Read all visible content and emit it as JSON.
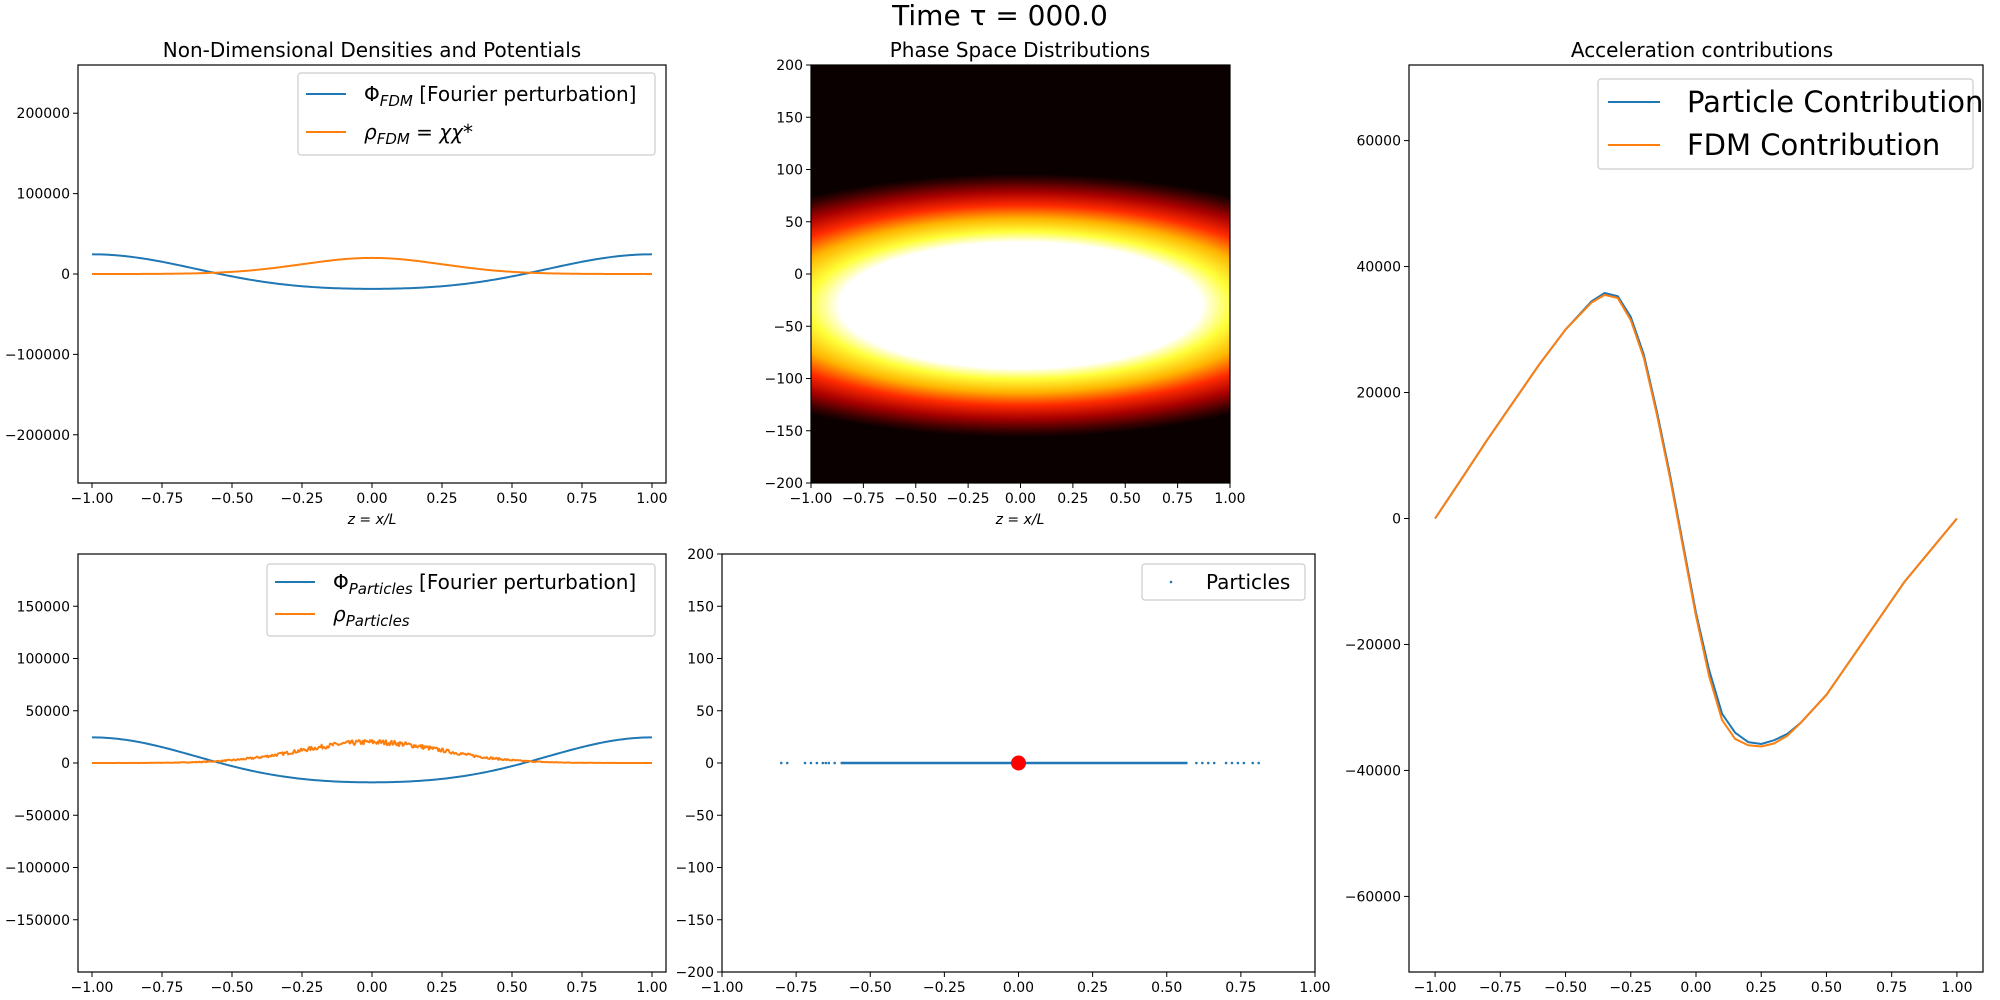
{
  "figure": {
    "suptitle": "Time τ = 000.0"
  },
  "colors": {
    "blue": "#1f77b4",
    "orange": "#ff7f0e",
    "red": "#ff0000"
  },
  "chart_data": [
    {
      "id": "densities_fdm",
      "type": "line",
      "title": "Non-Dimensional Densities and Potentials",
      "xlabel": "z = x/L",
      "xlim": [
        -1.05,
        1.05
      ],
      "ylim": [
        -260000,
        260000
      ],
      "xticks": [
        -1.0,
        -0.75,
        -0.5,
        -0.25,
        0.0,
        0.25,
        0.5,
        0.75,
        1.0
      ],
      "xtick_labels": [
        "−1.00",
        "−0.75",
        "−0.50",
        "−0.25",
        "0.00",
        "0.25",
        "0.50",
        "0.75",
        "1.00"
      ],
      "yticks": [
        200000,
        100000,
        0,
        -100000,
        -200000
      ],
      "ytick_labels": [
        "200000",
        "100000",
        "0",
        "−100000",
        "−200000"
      ],
      "legend_position": "upper right",
      "series": [
        {
          "name": "Φ_FDM [Fourier perturbation]",
          "legend_base": "Φ",
          "legend_sub": "FDM",
          "legend_suffix": " [Fourier perturbation]",
          "color": "#1f77b4",
          "kind": "cosine",
          "params": {
            "a": -21500,
            "b": 3000
          }
        },
        {
          "name": "ρ_FDM = χχ*",
          "legend_base": "ρ",
          "legend_sub": "FDM",
          "legend_suffix": " = χχ*",
          "color": "#ff7f0e",
          "kind": "gaussian",
          "params": {
            "a": 20000,
            "sigma": 0.25,
            "noise": 0
          }
        }
      ]
    },
    {
      "id": "phase_space",
      "type": "heatmap",
      "title": "Phase Space Distributions",
      "xlabel": "z = x/L",
      "xlim": [
        -1.0,
        1.0
      ],
      "ylim": [
        -200,
        200
      ],
      "xticks": [
        -1.0,
        -0.75,
        -0.5,
        -0.25,
        0.0,
        0.25,
        0.5,
        0.75,
        1.0
      ],
      "xtick_labels": [
        "−1.00",
        "−0.75",
        "−0.50",
        "−0.25",
        "0.00",
        "0.25",
        "0.50",
        "0.75",
        "1.00"
      ],
      "yticks": [
        200,
        150,
        100,
        50,
        0,
        -50,
        -100,
        -150,
        -200
      ],
      "ytick_labels": [
        "200",
        "150",
        "100",
        "50",
        "0",
        "−50",
        "−100",
        "−150",
        "−200"
      ],
      "colormap": "hot",
      "center": [
        0.0,
        -30
      ],
      "width_x": 0.9,
      "width_v": 60
    },
    {
      "id": "acceleration",
      "type": "line",
      "title": "Acceleration contributions",
      "xlabel": "",
      "xlim": [
        -1.1,
        1.1
      ],
      "ylim": [
        -72000,
        72000
      ],
      "xticks": [
        -1.0,
        -0.75,
        -0.5,
        -0.25,
        0.0,
        0.25,
        0.5,
        0.75,
        1.0
      ],
      "xtick_labels": [
        "−1.00",
        "−0.75",
        "−0.50",
        "−0.25",
        "0.00",
        "0.25",
        "0.50",
        "0.75",
        "1.00"
      ],
      "yticks": [
        60000,
        40000,
        20000,
        0,
        -20000,
        -40000,
        -60000
      ],
      "ytick_labels": [
        "60000",
        "40000",
        "20000",
        "0",
        "−20000",
        "−40000",
        "−60000"
      ],
      "legend_position": "upper right",
      "series": [
        {
          "name": "Particle Contribution",
          "color": "#1f77b4",
          "x": [
            -1.0,
            -0.9,
            -0.8,
            -0.7,
            -0.6,
            -0.5,
            -0.4,
            -0.35,
            -0.3,
            -0.25,
            -0.2,
            -0.15,
            -0.1,
            -0.05,
            0.0,
            0.05,
            0.1,
            0.15,
            0.2,
            0.25,
            0.3,
            0.35,
            0.4,
            0.5,
            0.6,
            0.7,
            0.8,
            0.9,
            1.0
          ],
          "y": [
            0,
            6200,
            12500,
            18500,
            24500,
            30000,
            34500,
            35800,
            35300,
            32000,
            26000,
            17000,
            7000,
            -4000,
            -15000,
            -24000,
            -31000,
            -34000,
            -35500,
            -35800,
            -35200,
            -34200,
            -32500,
            -28000,
            -22000,
            -16000,
            -10000,
            -5000,
            0
          ]
        },
        {
          "name": "FDM Contribution",
          "color": "#ff7f0e",
          "x": [
            -1.0,
            -0.9,
            -0.8,
            -0.7,
            -0.6,
            -0.5,
            -0.4,
            -0.35,
            -0.3,
            -0.25,
            -0.2,
            -0.15,
            -0.1,
            -0.05,
            0.0,
            0.05,
            0.1,
            0.15,
            0.2,
            0.25,
            0.3,
            0.35,
            0.4,
            0.5,
            0.6,
            0.7,
            0.8,
            0.9,
            1.0
          ],
          "y": [
            0,
            6200,
            12500,
            18500,
            24500,
            30000,
            34300,
            35500,
            35000,
            31500,
            25500,
            16500,
            6500,
            -4500,
            -15500,
            -25000,
            -32000,
            -35000,
            -36000,
            -36200,
            -35700,
            -34500,
            -32500,
            -28000,
            -22000,
            -16000,
            -10000,
            -5000,
            0
          ]
        }
      ]
    },
    {
      "id": "densities_particles",
      "type": "line",
      "title": "",
      "xlabel": "",
      "xlim": [
        -1.05,
        1.05
      ],
      "ylim": [
        -200000,
        200000
      ],
      "xticks": [
        -1.0,
        -0.75,
        -0.5,
        -0.25,
        0.0,
        0.25,
        0.5,
        0.75,
        1.0
      ],
      "xtick_labels": [
        "−1.00",
        "−0.75",
        "−0.50",
        "−0.25",
        "0.00",
        "0.25",
        "0.50",
        "0.75",
        "1.00"
      ],
      "yticks": [
        150000,
        100000,
        50000,
        0,
        -50000,
        -100000,
        -150000
      ],
      "ytick_labels": [
        "150000",
        "100000",
        "50000",
        "0",
        "−50000",
        "−100000",
        "−150000"
      ],
      "legend_position": "upper right",
      "series": [
        {
          "name": "Φ_Particles [Fourier perturbation]",
          "legend_base": "Φ",
          "legend_sub": "Particles",
          "legend_suffix": " [Fourier perturbation]",
          "color": "#1f77b4",
          "kind": "cosine",
          "params": {
            "a": -21500,
            "b": 3000
          }
        },
        {
          "name": "ρ_Particles",
          "legend_base": "ρ",
          "legend_sub": "Particles",
          "legend_suffix": "",
          "color": "#ff7f0e",
          "kind": "gaussian",
          "params": {
            "a": 20000,
            "sigma": 0.25,
            "noise": 2500
          }
        }
      ]
    },
    {
      "id": "particles_phase",
      "type": "scatter",
      "title": "",
      "xlabel": "",
      "xlim": [
        -1.0,
        1.0
      ],
      "ylim": [
        -200,
        200
      ],
      "xticks": [
        -1.0,
        -0.75,
        -0.5,
        -0.25,
        0.0,
        0.25,
        0.5,
        0.75,
        1.0
      ],
      "xtick_labels": [
        "−1.00",
        "−0.75",
        "−0.50",
        "−0.25",
        "0.00",
        "0.25",
        "0.50",
        "0.75",
        "1.00"
      ],
      "yticks": [
        200,
        150,
        100,
        50,
        0,
        -50,
        -100,
        -150,
        -200
      ],
      "ytick_labels": [
        "200",
        "150",
        "100",
        "50",
        "0",
        "−50",
        "−100",
        "−150",
        "−200"
      ],
      "legend_position": "upper right",
      "series": [
        {
          "name": "Particles",
          "color": "#1f77b4",
          "solid_range": [
            -0.6,
            0.57
          ],
          "scattered_x": [
            -0.8,
            -0.78,
            -0.72,
            -0.7,
            -0.68,
            -0.66,
            -0.65,
            -0.64,
            -0.62,
            0.6,
            0.62,
            0.64,
            0.66,
            0.7,
            0.72,
            0.74,
            0.76,
            0.79,
            0.81
          ],
          "y": 0
        }
      ],
      "marker": {
        "x": 0.0,
        "y": 0,
        "color": "#ff0000"
      }
    }
  ]
}
